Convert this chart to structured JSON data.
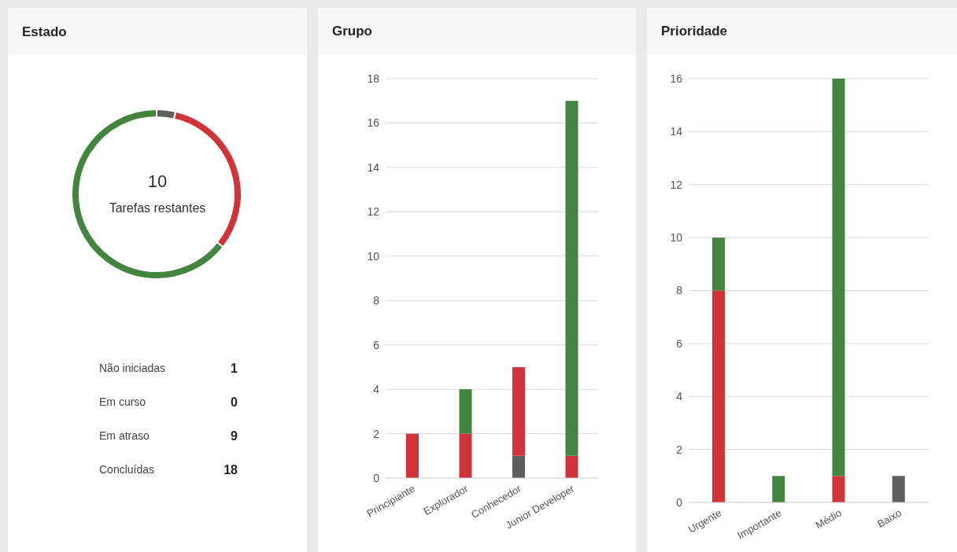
{
  "chart_data": [
    {
      "type": "donut",
      "title": "Estado",
      "categories": [
        null,
        null,
        null
      ],
      "values": [
        3.6,
        32.1,
        64.3
      ],
      "colors": [
        "#605e5c",
        "#d13438",
        "#43843f"
      ],
      "annotations": [
        "10",
        "Tarefas restantes"
      ]
    },
    {
      "type": "other",
      "categories": [
        "Não iniciadas",
        "Em curso",
        "Em atraso",
        "Concluídas"
      ],
      "values": [
        1,
        0,
        9,
        18
      ],
      "data_labels": true
    },
    {
      "type": "bar",
      "title": "Grupo",
      "categories": [
        "Principiante",
        "Explorador",
        "Conhecedor",
        "Junior Developer"
      ],
      "stacked": true,
      "series": [
        {
          "color": "#605e5c",
          "values": [
            0,
            0,
            1,
            0
          ]
        },
        {
          "color": "#d13438",
          "values": [
            2,
            2,
            4,
            1
          ]
        },
        {
          "color": "#43843f",
          "values": [
            0,
            2,
            0,
            16
          ]
        }
      ],
      "ylim": [
        0,
        18
      ],
      "yticks": [
        0,
        2,
        4,
        6,
        8,
        10,
        12,
        14,
        16,
        18
      ],
      "grid": "y",
      "legend": false
    },
    {
      "type": "bar",
      "title": "Prioridade",
      "categories": [
        "Urgente",
        "Importante",
        "Médio",
        "Baixo"
      ],
      "stacked": true,
      "series": [
        {
          "color": "#605e5c",
          "values": [
            0,
            0,
            0,
            1
          ]
        },
        {
          "color": "#d13438",
          "values": [
            8,
            0,
            1,
            0
          ]
        },
        {
          "color": "#43843f",
          "values": [
            2,
            1,
            15,
            0
          ]
        }
      ],
      "ylim": [
        0,
        16
      ],
      "yticks": [
        0,
        2,
        4,
        6,
        8,
        10,
        12,
        14,
        16
      ],
      "grid": "y",
      "legend": false
    }
  ]
}
